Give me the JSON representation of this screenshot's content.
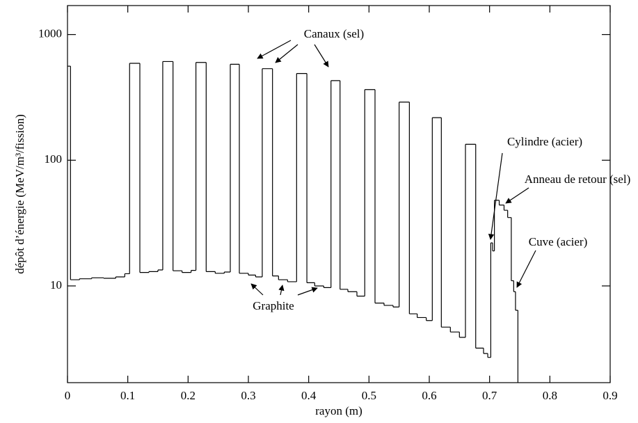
{
  "chart_data": {
    "type": "histogram",
    "xlabel": "rayon (m)",
    "ylabel": "dépôt d’énergie (MeV/m³/fission)",
    "bins": [
      0,
      0.005,
      0.02,
      0.04,
      0.06,
      0.08,
      0.095,
      0.103,
      0.12,
      0.135,
      0.15,
      0.158,
      0.175,
      0.19,
      0.205,
      0.213,
      0.23,
      0.245,
      0.26,
      0.27,
      0.285,
      0.3,
      0.312,
      0.323,
      0.34,
      0.35,
      0.365,
      0.38,
      0.397,
      0.41,
      0.425,
      0.437,
      0.452,
      0.465,
      0.48,
      0.493,
      0.51,
      0.525,
      0.54,
      0.55,
      0.567,
      0.58,
      0.595,
      0.605,
      0.62,
      0.635,
      0.65,
      0.66,
      0.677,
      0.69,
      0.697,
      0.702,
      0.705,
      0.708,
      0.716,
      0.724,
      0.73,
      0.736,
      0.74,
      0.743,
      0.747
    ],
    "values": [
      560,
      11.2,
      11.4,
      11.6,
      11.5,
      11.8,
      12.5,
      590,
      12.8,
      13.0,
      13.4,
      610,
      13.2,
      12.8,
      13.3,
      600,
      13.0,
      12.6,
      12.9,
      580,
      12.6,
      12.2,
      11.8,
      535,
      12.0,
      11.2,
      10.8,
      490,
      10.6,
      10.0,
      9.7,
      430,
      9.4,
      9.0,
      8.3,
      365,
      7.3,
      7.0,
      6.8,
      290,
      6.0,
      5.6,
      5.3,
      218,
      4.7,
      4.3,
      3.9,
      134,
      3.2,
      2.9,
      2.7,
      22,
      19,
      48,
      44,
      40,
      35,
      11,
      9,
      6.4
    ],
    "color": "#000000",
    "xlim": [
      0,
      0.9
    ],
    "xticks": [
      0,
      0.1,
      0.2,
      0.3,
      0.4,
      0.5,
      0.6,
      0.7,
      0.8,
      0.9
    ],
    "ylim": [
      1.7,
      1700
    ],
    "yticks": [
      10,
      100,
      1000
    ],
    "log_y": true,
    "annotations": [
      "Canaux (sel)",
      "Graphite",
      "Cylindre (acier)",
      "Anneau de retour (sel)",
      "Cuve (acier)"
    ]
  }
}
